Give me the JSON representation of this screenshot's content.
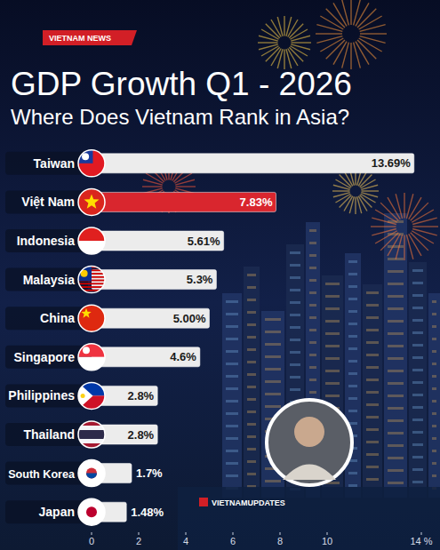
{
  "chart_data": {
    "type": "bar",
    "orientation": "horizontal",
    "title": "GDP Growth Q1 - 2026",
    "subtitle": "Where Does Vietnam Rank in Asia?",
    "annotations": [
      "VIETNAM NEWS",
      "VIETNAMUPDATES"
    ],
    "categories": [
      "Taiwan",
      "Việt Nam",
      "Indonesia",
      "Malaysia",
      "China",
      "Singapore",
      "Philippines",
      "Thailand",
      "South Korea",
      "Japan"
    ],
    "values": [
      13.69,
      7.83,
      5.61,
      5.3,
      5.0,
      4.6,
      2.8,
      2.8,
      1.7,
      1.48
    ],
    "value_labels": [
      "13.69%",
      "7.83%",
      "5.61%",
      "5.3%",
      "5.00%",
      "4.6%",
      "2.8%",
      "2.8%",
      "1.7%",
      "1.48%"
    ],
    "colors": [
      "#ececec",
      "#d9262e",
      "#ececec",
      "#ececec",
      "#ececec",
      "#ececec",
      "#ececec",
      "#ececec",
      "#ececec",
      "#ececec"
    ],
    "data_labels": true,
    "grid": false,
    "xlim": [
      0,
      14
    ],
    "xticks": [
      0,
      2,
      4,
      6,
      8,
      10,
      {
        "value": 14,
        "label": "14 %"
      }
    ]
  }
}
